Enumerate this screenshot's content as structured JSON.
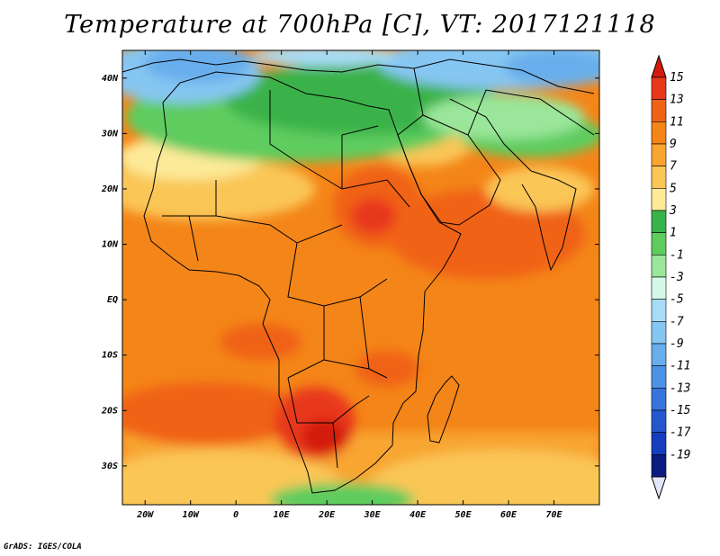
{
  "title": "Temperature at 700hPa [C], VT: 2017121118",
  "credit": "GrADS: IGES/COLA",
  "map": {
    "lon_range": [
      -25,
      80
    ],
    "lat_range": [
      -37,
      45
    ],
    "lat_labels": [
      {
        "lat": 40,
        "text": "40N"
      },
      {
        "lat": 30,
        "text": "30N"
      },
      {
        "lat": 20,
        "text": "20N"
      },
      {
        "lat": 10,
        "text": "10N"
      },
      {
        "lat": 0,
        "text": "EQ"
      },
      {
        "lat": -10,
        "text": "10S"
      },
      {
        "lat": -20,
        "text": "20S"
      },
      {
        "lat": -30,
        "text": "30S"
      }
    ],
    "lon_labels": [
      {
        "lon": -20,
        "text": "20W"
      },
      {
        "lon": -10,
        "text": "10W"
      },
      {
        "lon": 0,
        "text": "0"
      },
      {
        "lon": 10,
        "text": "10E"
      },
      {
        "lon": 20,
        "text": "20E"
      },
      {
        "lon": 30,
        "text": "30E"
      },
      {
        "lon": 40,
        "text": "40E"
      },
      {
        "lon": 50,
        "text": "50E"
      },
      {
        "lon": 60,
        "text": "60E"
      },
      {
        "lon": 70,
        "text": "70E"
      }
    ]
  },
  "colorbar": {
    "top_arrow_color": "#d41a0b",
    "bottom_arrow_color": "#e6e6fa",
    "bins": [
      {
        "color": "#e8381c"
      },
      {
        "color": "#f06218"
      },
      {
        "color": "#f48518"
      },
      {
        "color": "#f8a532"
      },
      {
        "color": "#fac656"
      },
      {
        "color": "#fdea98"
      },
      {
        "color": "#3ab24a"
      },
      {
        "color": "#5fcc5f"
      },
      {
        "color": "#9ae69a"
      },
      {
        "color": "#d5f8e8"
      },
      {
        "color": "#a8dcf6"
      },
      {
        "color": "#86c6f2"
      },
      {
        "color": "#68aeec"
      },
      {
        "color": "#4d92e4"
      },
      {
        "color": "#3874db"
      },
      {
        "color": "#2457ce"
      },
      {
        "color": "#153ebe"
      },
      {
        "color": "#0a1c82"
      }
    ],
    "labels": [
      "15",
      "13",
      "11",
      "9",
      "7",
      "5",
      "3",
      "1",
      "-1",
      "-3",
      "-5",
      "-7",
      "-9",
      "-11",
      "-13",
      "-15",
      "-17",
      "-19"
    ]
  }
}
